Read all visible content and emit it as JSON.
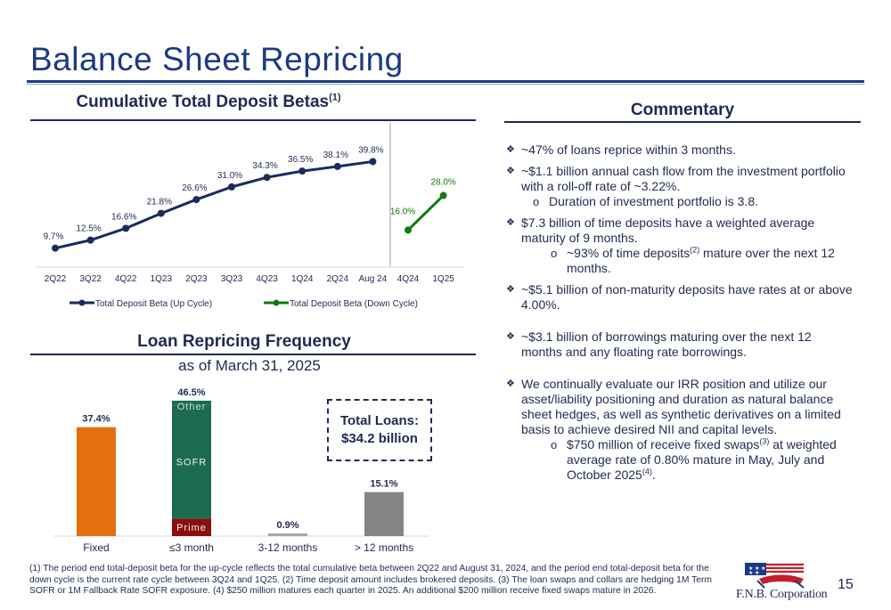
{
  "page": {
    "title": "Balance Sheet Repricing",
    "page_number": "15"
  },
  "deposit_section": {
    "heading": "Cumulative Total Deposit Betas",
    "heading_sup": "(1)"
  },
  "loan_section": {
    "heading": "Loan Repricing Frequency",
    "subtitle": "as of March 31, 2025",
    "total_line1": "Total Loans:",
    "total_line2": "$34.2 billion"
  },
  "commentary": {
    "heading": "Commentary",
    "b1": "~47% of loans reprice within 3 months.",
    "b2": "~$1.1 billion annual cash flow from the investment portfolio with a roll-off rate of ~3.22%.",
    "b2_sub": "Duration of investment portfolio is 3.8.",
    "b3": "$7.3 billion of time deposits have a weighted average maturity of 9 months.",
    "b3_sub_a": "~93% of time deposits",
    "b3_sub_sup": "(2)",
    "b3_sub_b": " mature over the next 12 months.",
    "b4": "~$5.1 billion of non-maturity deposits have rates at or above 4.00%.",
    "b5": "~$3.1 billion of borrowings maturing over the next 12 months and any floating rate borrowings.",
    "b6": "We continually evaluate our IRR position and utilize our asset/liability positioning and duration as natural balance sheet hedges, as well as synthetic derivatives on a limited basis to achieve desired NII and capital levels.",
    "b6_sub_a": "$750 million of receive fixed swaps",
    "b6_sub_sup1": "(3)",
    "b6_sub_b": " at weighted average rate of 0.80% mature in May, July and October 2025",
    "b6_sub_sup2": "(4)",
    "b6_sub_c": "."
  },
  "footnote": "(1) The period end total-deposit beta for the up-cycle reflects the total cumulative beta between 2Q22 and August 31, 2024, and the period end total-deposit beta for the down cycle is the current rate cycle between 3Q24 and 1Q25. (2) Time deposit amount includes brokered deposits. (3) The loan swaps and collars are hedging 1M Term SOFR or 1M Fallback Rate SOFR exposure. (4) $250 million matures each quarter in 2025. An additional $200 million receive fixed swaps mature in 2026.",
  "logo": {
    "text": "F.N.B. Corporation"
  },
  "chart_data": [
    {
      "type": "line",
      "categories": [
        "2Q22",
        "3Q22",
        "4Q22",
        "1Q23",
        "2Q23",
        "3Q23",
        "4Q23",
        "1Q24",
        "2Q24",
        "Aug 24",
        "4Q24",
        "1Q25"
      ],
      "series": [
        {
          "name": "Total Deposit Beta (Up Cycle)",
          "color": "#1a2b5e",
          "x": [
            "2Q22",
            "3Q22",
            "4Q22",
            "1Q23",
            "2Q23",
            "3Q23",
            "4Q23",
            "1Q24",
            "2Q24",
            "Aug 24"
          ],
          "values": [
            9.7,
            12.5,
            16.6,
            21.8,
            26.6,
            31.0,
            34.3,
            36.5,
            38.1,
            39.8
          ],
          "labels": [
            "9.7%",
            "12.5%",
            "16.6%",
            "21.8%",
            "26.6%",
            "31.0%",
            "34.3%",
            "36.5%",
            "38.1%",
            "39.8%"
          ]
        },
        {
          "name": "Total Deposit Beta (Down Cycle)",
          "color": "#0f7a12",
          "x": [
            "4Q24",
            "1Q25"
          ],
          "values": [
            16.0,
            28.0
          ],
          "labels": [
            "16.0%",
            "28.0%"
          ]
        }
      ],
      "legend": "bottom",
      "grid": false
    },
    {
      "type": "bar",
      "categories": [
        "Fixed",
        "≤3 month",
        "3-12 months",
        "> 12 months"
      ],
      "stacked": true,
      "totals": [
        37.4,
        46.5,
        0.9,
        15.1
      ],
      "total_labels": [
        "37.4%",
        "46.5%",
        "0.9%",
        "15.1%"
      ],
      "segments": [
        {
          "category": "Fixed",
          "name": "",
          "value": 37.4,
          "color": "#e3700f"
        },
        {
          "category": "≤3 month",
          "name": "Prime",
          "value": 6.0,
          "color": "#8b0e0e"
        },
        {
          "category": "≤3 month",
          "name": "SOFR",
          "value": 39.0,
          "color": "#1b6b4f"
        },
        {
          "category": "≤3 month",
          "name": "Other",
          "value": 1.5,
          "color": "#1b6b4f"
        },
        {
          "category": "3-12 months",
          "name": "",
          "value": 0.9,
          "color": "#a6a6a6"
        },
        {
          "category": "> 12 months",
          "name": "",
          "value": 15.1,
          "color": "#858585"
        }
      ],
      "grid": false
    }
  ]
}
